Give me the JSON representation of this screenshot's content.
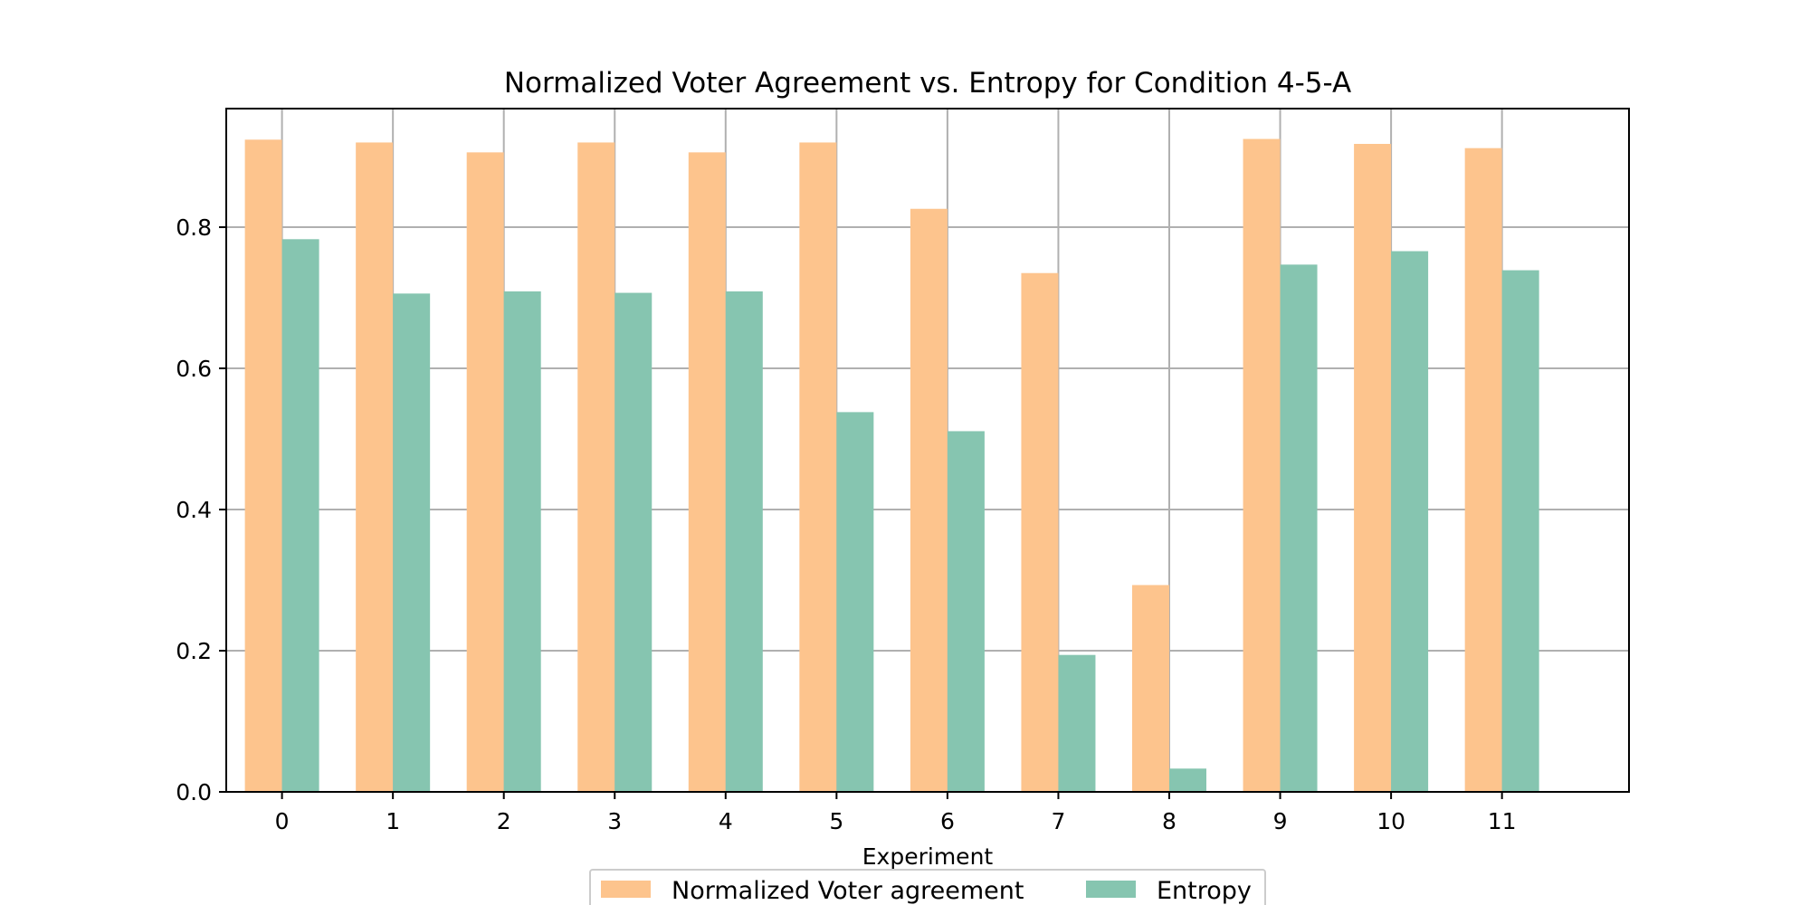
{
  "chart_data": {
    "type": "bar",
    "title": "Normalized Voter Agreement vs. Entropy for Condition 4-5-A",
    "xlabel": "Experiment",
    "ylabel": "",
    "categories": [
      "0",
      "1",
      "2",
      "3",
      "4",
      "5",
      "6",
      "7",
      "8",
      "9",
      "10",
      "11"
    ],
    "series": [
      {
        "name": "Normalized Voter agreement",
        "color": "#fdc48d",
        "values": [
          0.924,
          0.92,
          0.906,
          0.92,
          0.906,
          0.92,
          0.826,
          0.735,
          0.293,
          0.925,
          0.918,
          0.912
        ]
      },
      {
        "name": "Entropy",
        "color": "#86c5b0",
        "values": [
          0.783,
          0.706,
          0.709,
          0.707,
          0.709,
          0.538,
          0.511,
          0.194,
          0.033,
          0.747,
          0.766,
          0.739
        ]
      }
    ],
    "ylim": [
      0,
      0.968
    ],
    "yticks": [
      "0.0",
      "0.2",
      "0.4",
      "0.6",
      "0.8"
    ],
    "grid": true,
    "legend_position": "bottom-center"
  }
}
